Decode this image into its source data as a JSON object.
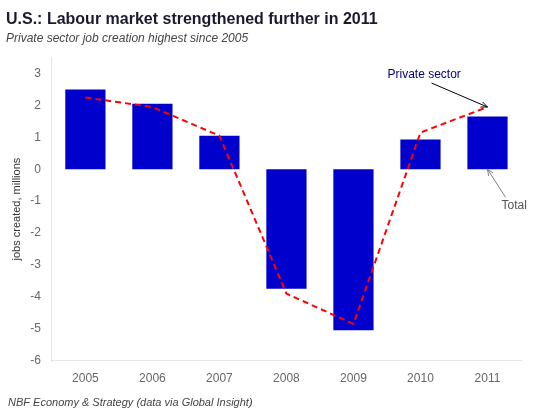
{
  "chart_data": {
    "type": "bar",
    "title": "U.S.: Labour market strengthened further in 2011",
    "subtitle": "Private sector job creation highest since 2005",
    "footer": "NBF Economy & Strategy (data via Global Insight)",
    "ylabel": "jobs created, millions",
    "categories": [
      "2005",
      "2006",
      "2007",
      "2008",
      "2009",
      "2010",
      "2011"
    ],
    "series": [
      {
        "type": "bar",
        "color": "#0000CC",
        "values": [
          2.5,
          2.05,
          1.05,
          -3.75,
          -5.05,
          0.93,
          1.65
        ]
      },
      {
        "type": "line",
        "color": "#FF0000",
        "line_style": "dashed",
        "values": [
          2.25,
          1.95,
          1.05,
          -3.9,
          -4.85,
          1.15,
          1.95
        ]
      }
    ],
    "ylim": [
      -6,
      3.5
    ],
    "yticks": [
      -6,
      -5,
      -4,
      -3,
      -2,
      -1,
      0,
      1,
      2,
      3
    ],
    "grid": false,
    "annotations": [
      {
        "text": "Private sector",
        "x": "2011",
        "y": 1.95
      },
      {
        "text": "Total",
        "x": "2011",
        "y": 0.0
      }
    ]
  }
}
